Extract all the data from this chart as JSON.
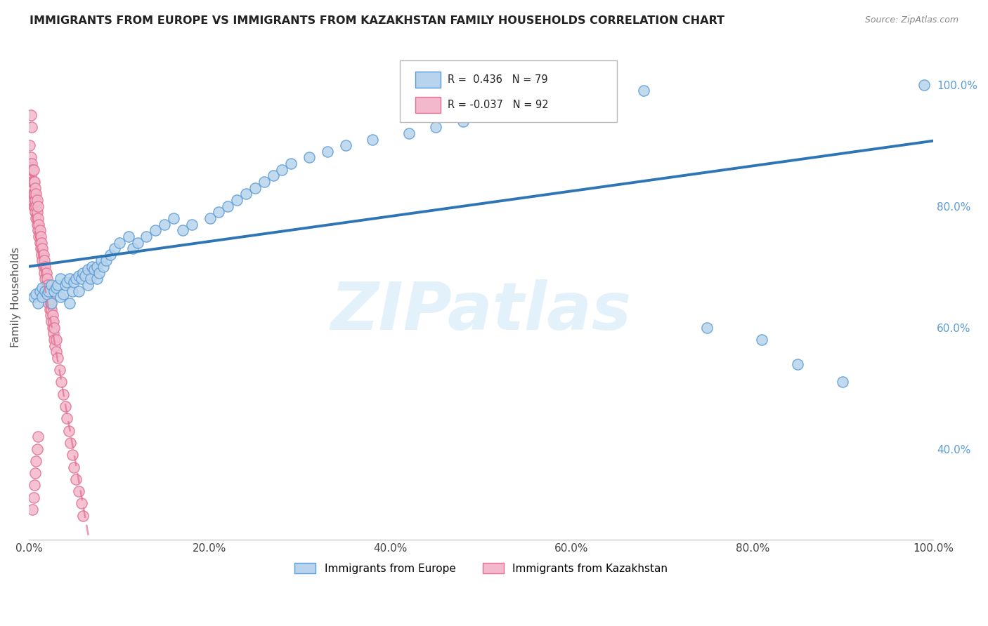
{
  "title": "IMMIGRANTS FROM EUROPE VS IMMIGRANTS FROM KAZAKHSTAN FAMILY HOUSEHOLDS CORRELATION CHART",
  "source": "Source: ZipAtlas.com",
  "ylabel": "Family Households",
  "legend_labels": [
    "Immigrants from Europe",
    "Immigrants from Kazakhstan"
  ],
  "europe_R": 0.436,
  "europe_N": 79,
  "kazakhstan_R": -0.037,
  "kazakhstan_N": 92,
  "europe_color": "#b8d4ec",
  "europe_edge_color": "#5b9bd5",
  "europe_line_color": "#2e75b6",
  "kazakhstan_color": "#f4b8cc",
  "kazakhstan_edge_color": "#e07090",
  "kazakhstan_line_color": "#d4708c",
  "watermark_text": "ZIPatlas",
  "watermark_color": "#d0e8f8",
  "background_color": "#ffffff",
  "grid_color": "#cccccc",
  "right_tick_color": "#5b9bd5",
  "europe_x": [
    0.005,
    0.008,
    0.01,
    0.012,
    0.015,
    0.015,
    0.018,
    0.02,
    0.022,
    0.025,
    0.025,
    0.028,
    0.03,
    0.032,
    0.035,
    0.035,
    0.038,
    0.04,
    0.042,
    0.045,
    0.045,
    0.048,
    0.05,
    0.052,
    0.055,
    0.055,
    0.058,
    0.06,
    0.062,
    0.065,
    0.065,
    0.068,
    0.07,
    0.072,
    0.075,
    0.075,
    0.078,
    0.08,
    0.082,
    0.085,
    0.09,
    0.095,
    0.1,
    0.11,
    0.115,
    0.12,
    0.13,
    0.14,
    0.15,
    0.16,
    0.17,
    0.18,
    0.2,
    0.21,
    0.22,
    0.23,
    0.24,
    0.25,
    0.26,
    0.27,
    0.28,
    0.29,
    0.31,
    0.33,
    0.35,
    0.38,
    0.42,
    0.45,
    0.48,
    0.5,
    0.53,
    0.58,
    0.62,
    0.68,
    0.75,
    0.81,
    0.85,
    0.9,
    0.99
  ],
  "europe_y": [
    0.65,
    0.655,
    0.64,
    0.66,
    0.65,
    0.665,
    0.66,
    0.655,
    0.66,
    0.67,
    0.64,
    0.66,
    0.665,
    0.67,
    0.68,
    0.65,
    0.655,
    0.67,
    0.675,
    0.68,
    0.64,
    0.66,
    0.675,
    0.68,
    0.685,
    0.66,
    0.68,
    0.69,
    0.685,
    0.695,
    0.67,
    0.68,
    0.7,
    0.695,
    0.7,
    0.68,
    0.69,
    0.71,
    0.7,
    0.71,
    0.72,
    0.73,
    0.74,
    0.75,
    0.73,
    0.74,
    0.75,
    0.76,
    0.77,
    0.78,
    0.76,
    0.77,
    0.78,
    0.79,
    0.8,
    0.81,
    0.82,
    0.83,
    0.84,
    0.85,
    0.86,
    0.87,
    0.88,
    0.89,
    0.9,
    0.91,
    0.92,
    0.93,
    0.94,
    0.95,
    0.96,
    0.97,
    0.98,
    0.99,
    0.6,
    0.58,
    0.54,
    0.51,
    1.0
  ],
  "kazakhstan_x": [
    0.001,
    0.001,
    0.002,
    0.002,
    0.002,
    0.003,
    0.003,
    0.003,
    0.004,
    0.004,
    0.004,
    0.005,
    0.005,
    0.005,
    0.005,
    0.006,
    0.006,
    0.006,
    0.007,
    0.007,
    0.007,
    0.008,
    0.008,
    0.008,
    0.009,
    0.009,
    0.009,
    0.01,
    0.01,
    0.01,
    0.011,
    0.011,
    0.012,
    0.012,
    0.013,
    0.013,
    0.014,
    0.014,
    0.015,
    0.015,
    0.016,
    0.016,
    0.017,
    0.017,
    0.018,
    0.018,
    0.019,
    0.019,
    0.02,
    0.02,
    0.021,
    0.021,
    0.022,
    0.022,
    0.023,
    0.023,
    0.024,
    0.024,
    0.025,
    0.025,
    0.026,
    0.026,
    0.027,
    0.027,
    0.028,
    0.028,
    0.029,
    0.03,
    0.03,
    0.032,
    0.034,
    0.036,
    0.038,
    0.04,
    0.042,
    0.044,
    0.046,
    0.048,
    0.05,
    0.052,
    0.055,
    0.058,
    0.06,
    0.002,
    0.003,
    0.004,
    0.005,
    0.006,
    0.007,
    0.008,
    0.009,
    0.01
  ],
  "kazakhstan_y": [
    0.87,
    0.9,
    0.85,
    0.88,
    0.86,
    0.84,
    0.86,
    0.87,
    0.82,
    0.84,
    0.86,
    0.8,
    0.82,
    0.84,
    0.86,
    0.8,
    0.82,
    0.84,
    0.79,
    0.81,
    0.83,
    0.78,
    0.8,
    0.82,
    0.77,
    0.79,
    0.81,
    0.76,
    0.78,
    0.8,
    0.75,
    0.77,
    0.74,
    0.76,
    0.73,
    0.75,
    0.72,
    0.74,
    0.71,
    0.73,
    0.7,
    0.72,
    0.69,
    0.71,
    0.68,
    0.7,
    0.67,
    0.69,
    0.66,
    0.68,
    0.65,
    0.67,
    0.64,
    0.66,
    0.63,
    0.65,
    0.62,
    0.64,
    0.61,
    0.63,
    0.6,
    0.62,
    0.59,
    0.61,
    0.58,
    0.6,
    0.57,
    0.56,
    0.58,
    0.55,
    0.53,
    0.51,
    0.49,
    0.47,
    0.45,
    0.43,
    0.41,
    0.39,
    0.37,
    0.35,
    0.33,
    0.31,
    0.29,
    0.95,
    0.93,
    0.3,
    0.32,
    0.34,
    0.36,
    0.38,
    0.4,
    0.42
  ],
  "xlim": [
    0.0,
    1.0
  ],
  "ylim": [
    0.25,
    1.05
  ],
  "xticks": [
    0.0,
    0.2,
    0.4,
    0.6,
    0.8,
    1.0
  ],
  "xticklabels": [
    "0.0%",
    "20.0%",
    "40.0%",
    "60.0%",
    "80.0%",
    "100.0%"
  ],
  "right_yticks": [
    0.4,
    0.6,
    0.8,
    1.0
  ],
  "right_yticklabels": [
    "40.0%",
    "60.0%",
    "80.0%",
    "100.0%"
  ]
}
